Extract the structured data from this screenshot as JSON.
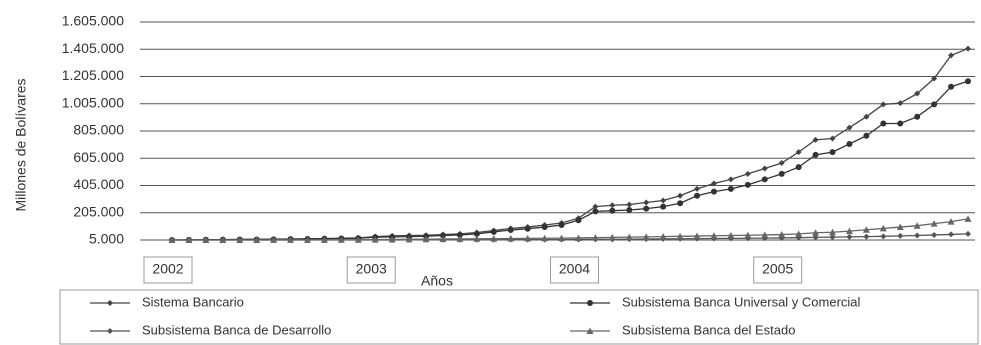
{
  "chart_data": {
    "type": "line",
    "y_label": "Millones de Bolívares",
    "x_label": "Años",
    "categories": [
      "2002",
      null,
      null,
      null,
      null,
      null,
      null,
      null,
      null,
      null,
      null,
      null,
      "2003",
      null,
      null,
      null,
      null,
      null,
      null,
      null,
      null,
      null,
      null,
      null,
      "2004",
      null,
      null,
      null,
      null,
      null,
      null,
      null,
      null,
      null,
      null,
      null,
      "2005",
      null,
      null,
      null,
      null,
      null,
      null,
      null,
      null,
      null,
      null,
      null
    ],
    "ylim": [
      5000,
      1605000
    ],
    "yticks": [
      {
        "value": 5000,
        "label": "5.000"
      },
      {
        "value": 205000,
        "label": "205.000"
      },
      {
        "value": 405000,
        "label": "405.000"
      },
      {
        "value": 605000,
        "label": "605.000"
      },
      {
        "value": 805000,
        "label": "805.000"
      },
      {
        "value": 1005000,
        "label": "1.005.000"
      },
      {
        "value": 1205000,
        "label": "1.205.000"
      },
      {
        "value": 1405000,
        "label": "1.405.000"
      },
      {
        "value": 1605000,
        "label": "1.605.000"
      }
    ],
    "grid": true,
    "series": [
      {
        "name": "Sistema Bancario",
        "color": "#444444",
        "marker": "diamond",
        "values": [
          5000,
          6000,
          7000,
          8000,
          9000,
          10000,
          11000,
          12000,
          14000,
          16000,
          18000,
          20000,
          30000,
          35000,
          38000,
          40000,
          45000,
          50000,
          60000,
          75000,
          90000,
          100000,
          115000,
          130000,
          165000,
          250000,
          260000,
          265000,
          280000,
          295000,
          330000,
          380000,
          420000,
          450000,
          490000,
          530000,
          570000,
          650000,
          740000,
          750000,
          830000,
          910000,
          1000000,
          1010000,
          1080000,
          1190000,
          1360000,
          1410000
        ]
      },
      {
        "name": "Subsistema Banca Universal y Comercial",
        "color": "#333333",
        "marker": "circle",
        "values": [
          5000,
          5500,
          6500,
          7500,
          8500,
          9000,
          10000,
          11000,
          12000,
          14000,
          16000,
          18000,
          25000,
          28000,
          30000,
          33000,
          38000,
          42000,
          50000,
          65000,
          78000,
          88000,
          100000,
          115000,
          150000,
          215000,
          220000,
          225000,
          235000,
          250000,
          275000,
          330000,
          360000,
          380000,
          410000,
          450000,
          490000,
          540000,
          630000,
          650000,
          710000,
          770000,
          860000,
          860000,
          910000,
          1000000,
          1130000,
          1170000
        ]
      },
      {
        "name": "Subsistema Banca de Desarrollo",
        "color": "#555555",
        "marker": "diamond",
        "values": [
          5000,
          5000,
          5000,
          5000,
          5000,
          5000,
          5000,
          5000,
          5000,
          5000,
          5000,
          5000,
          5500,
          5500,
          6000,
          6000,
          6500,
          6500,
          7000,
          7000,
          7500,
          8000,
          8000,
          8500,
          9000,
          9500,
          10000,
          11000,
          12000,
          13000,
          14000,
          15000,
          16000,
          17000,
          18000,
          19000,
          20000,
          22000,
          24000,
          26000,
          28000,
          30000,
          32000,
          35000,
          38000,
          42000,
          46000,
          50000
        ]
      },
      {
        "name": "Subsistema Banca del Estado",
        "color": "#666666",
        "marker": "triangle",
        "values": [
          5000,
          5000,
          5000,
          5000,
          5000,
          5000,
          5500,
          5500,
          6000,
          6000,
          6500,
          7000,
          8000,
          9000,
          10000,
          11000,
          12000,
          13000,
          14000,
          15000,
          16000,
          17000,
          18000,
          19000,
          20000,
          22000,
          24000,
          26000,
          28000,
          30000,
          32000,
          34000,
          36000,
          38000,
          40000,
          42000,
          45000,
          50000,
          58000,
          62000,
          70000,
          80000,
          90000,
          100000,
          110000,
          125000,
          140000,
          160000
        ]
      }
    ]
  }
}
